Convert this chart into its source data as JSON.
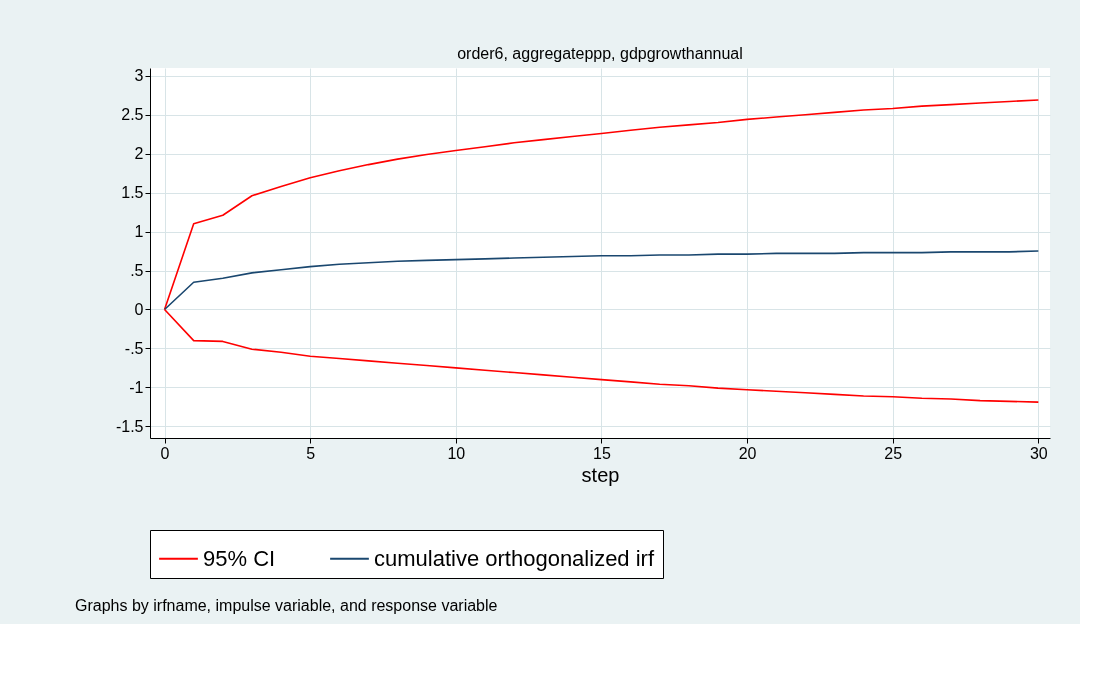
{
  "chart_data": {
    "type": "line",
    "title": "order6, aggregateppp, gdpgrowthannual",
    "xlabel": "step",
    "x": [
      0,
      1,
      2,
      3,
      4,
      5,
      6,
      7,
      8,
      9,
      10,
      11,
      12,
      13,
      14,
      15,
      16,
      17,
      18,
      19,
      20,
      21,
      22,
      23,
      24,
      25,
      26,
      27,
      28,
      29,
      30
    ],
    "series": [
      {
        "name": "95% CI",
        "color": "#ff0000",
        "values": [
          0,
          1.1,
          1.21,
          1.46,
          1.58,
          1.69,
          1.78,
          1.86,
          1.93,
          1.99,
          2.04,
          2.09,
          2.14,
          2.18,
          2.22,
          2.26,
          2.3,
          2.34,
          2.37,
          2.4,
          2.44,
          2.47,
          2.5,
          2.53,
          2.56,
          2.58,
          2.61,
          2.63,
          2.65,
          2.67,
          2.69
        ]
      },
      {
        "color": "#ff0000",
        "values": [
          0,
          -0.4,
          -0.41,
          -0.51,
          -0.55,
          -0.6,
          -0.63,
          -0.66,
          -0.69,
          -0.72,
          -0.75,
          -0.78,
          -0.81,
          -0.84,
          -0.87,
          -0.9,
          -0.93,
          -0.96,
          -0.98,
          -1.01,
          -1.03,
          -1.05,
          -1.07,
          -1.09,
          -1.11,
          -1.12,
          -1.14,
          -1.15,
          -1.17,
          -1.18,
          -1.19
        ]
      },
      {
        "name": "cumulative orthogonalized irf",
        "color": "#1a476f",
        "values": [
          0,
          0.35,
          0.4,
          0.47,
          0.51,
          0.55,
          0.58,
          0.6,
          0.62,
          0.63,
          0.64,
          0.65,
          0.66,
          0.67,
          0.68,
          0.69,
          0.69,
          0.7,
          0.7,
          0.71,
          0.71,
          0.72,
          0.72,
          0.72,
          0.73,
          0.73,
          0.73,
          0.74,
          0.74,
          0.74,
          0.75
        ]
      }
    ],
    "xlim": [
      -0.5,
      30.4
    ],
    "xticks": [
      0,
      5,
      10,
      15,
      20,
      25,
      30
    ],
    "ylim": [
      -1.65,
      3.1
    ],
    "yticks": [
      {
        "value": -1.5,
        "label": "-1.5"
      },
      {
        "value": -1,
        "label": "-1"
      },
      {
        "value": -0.5,
        "label": "-.5"
      },
      0,
      {
        "value": 0.5,
        "label": ".5"
      },
      1,
      1.5,
      2,
      2.5,
      3
    ],
    "grid": true,
    "legend": "bottom",
    "annotations": [
      "Graphs by irfname, impulse variable, and response variable"
    ]
  }
}
